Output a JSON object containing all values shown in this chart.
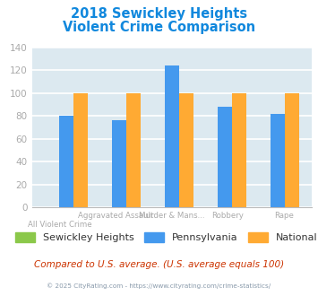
{
  "title_line1": "2018 Sewickley Heights",
  "title_line2": "Violent Crime Comparison",
  "categories_top": [
    "",
    "Aggravated Assault",
    "Murder & Mans...",
    "Robbery",
    "Rape"
  ],
  "categories_bot": [
    "All Violent Crime",
    "",
    "",
    "",
    ""
  ],
  "sewickley_heights": [
    0,
    0,
    0,
    0,
    0
  ],
  "pennsylvania": [
    80,
    76,
    124,
    88,
    82
  ],
  "national": [
    100,
    100,
    100,
    100,
    100
  ],
  "colors": {
    "sewickley": "#8bc84a",
    "pennsylvania": "#4499ee",
    "national": "#ffaa33"
  },
  "ylim": [
    0,
    140
  ],
  "yticks": [
    0,
    20,
    40,
    60,
    80,
    100,
    120,
    140
  ],
  "background_color": "#dce9f0",
  "grid_color": "#ffffff",
  "title_color": "#1188dd",
  "annotation": "Compared to U.S. average. (U.S. average equals 100)",
  "annotation_color": "#cc3300",
  "footer": "© 2025 CityRating.com - https://www.cityrating.com/crime-statistics/",
  "footer_color": "#8899aa",
  "legend_labels": [
    "Sewickley Heights",
    "Pennsylvania",
    "National"
  ],
  "tick_label_color": "#aaaaaa"
}
